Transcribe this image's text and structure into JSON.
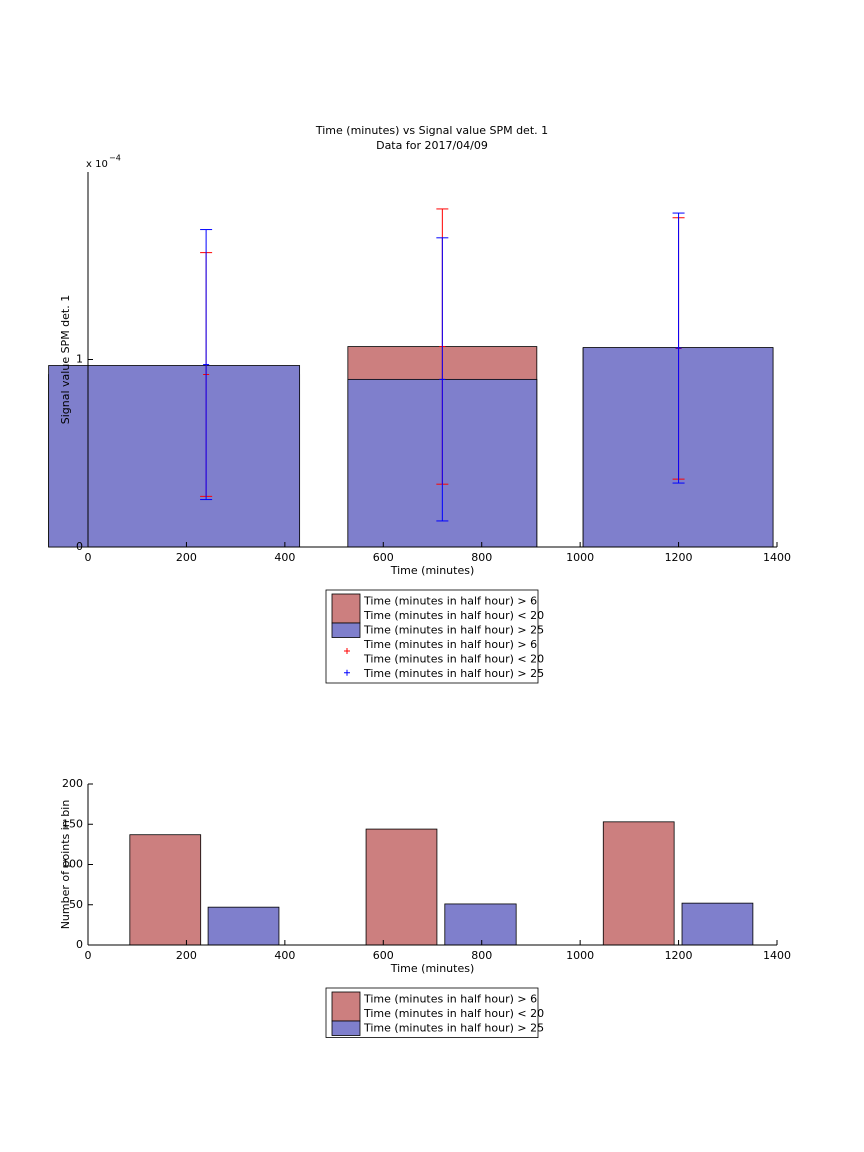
{
  "chart_data": [
    {
      "type": "bar",
      "title": "Time (minutes) vs Signal value SPM det. 1",
      "subtitle": "Data for 2017/04/09",
      "xlabel": "Time (minutes)",
      "ylabel": "Signal value SPM det. 1",
      "y_multiplier": "x 10",
      "y_exponent": "−4",
      "xlim": [
        0,
        1400
      ],
      "xticks": [
        0,
        200,
        400,
        600,
        800,
        1000,
        1200,
        1400
      ],
      "ylim": [
        0,
        2
      ],
      "yticks": [
        0,
        1
      ],
      "series": [
        {
          "name": [
            "Time (minutes in half hour) > 6",
            "Time (minutes in half hour) < 20"
          ],
          "color": "#cc7f7f",
          "x_edges": [
            [
              -80,
              430
            ],
            [
              528,
              912
            ],
            [
              1006,
              1392
            ]
          ],
          "values": [
            0.92,
            1.069,
            1.06
          ]
        },
        {
          "name": [
            "Time (minutes in half hour) > 25"
          ],
          "color": "#7f7fcc",
          "x_edges": [
            [
              -80,
              430
            ],
            [
              528,
              912
            ],
            [
              1006,
              1392
            ]
          ],
          "values": [
            0.968,
            0.894,
            1.064
          ]
        }
      ],
      "errorbars": [
        {
          "name": [
            "Time (minutes in half hour) > 6",
            "Time (minutes in half hour) < 20"
          ],
          "color": "#ff0000",
          "x": [
            240,
            720,
            1200
          ],
          "values": [
            0.92,
            1.069,
            1.059
          ],
          "errors": [
            0.65,
            0.734,
            0.697
          ]
        },
        {
          "name": [
            "Time (minutes in half hour) > 25"
          ],
          "color": "#0000ff",
          "x": [
            240,
            720,
            1200
          ],
          "values": [
            0.973,
            0.894,
            1.061
          ],
          "errors": [
            0.72,
            0.755,
            0.72
          ]
        }
      ]
    },
    {
      "type": "bar",
      "xlabel": "Time (minutes)",
      "ylabel": "Number of points in bin",
      "xlim": [
        0,
        1400
      ],
      "xticks": [
        0,
        200,
        400,
        600,
        800,
        1000,
        1200,
        1400
      ],
      "ylim": [
        0,
        200
      ],
      "yticks": [
        0,
        50,
        100,
        150,
        200
      ],
      "series": [
        {
          "name": [
            "Time (minutes in half hour) > 6",
            "Time (minutes in half hour) < 20"
          ],
          "color": "#cc7f7f",
          "x_edges": [
            [
              85,
              229
            ],
            [
              565,
              709
            ],
            [
              1047,
              1191
            ]
          ],
          "values": [
            137,
            144,
            153
          ]
        },
        {
          "name": [
            "Time (minutes in half hour) > 25"
          ],
          "color": "#7f7fcc",
          "x_edges": [
            [
              244,
              388
            ],
            [
              725,
              870
            ],
            [
              1207,
              1351
            ]
          ],
          "values": [
            47,
            51,
            52
          ]
        }
      ]
    }
  ]
}
